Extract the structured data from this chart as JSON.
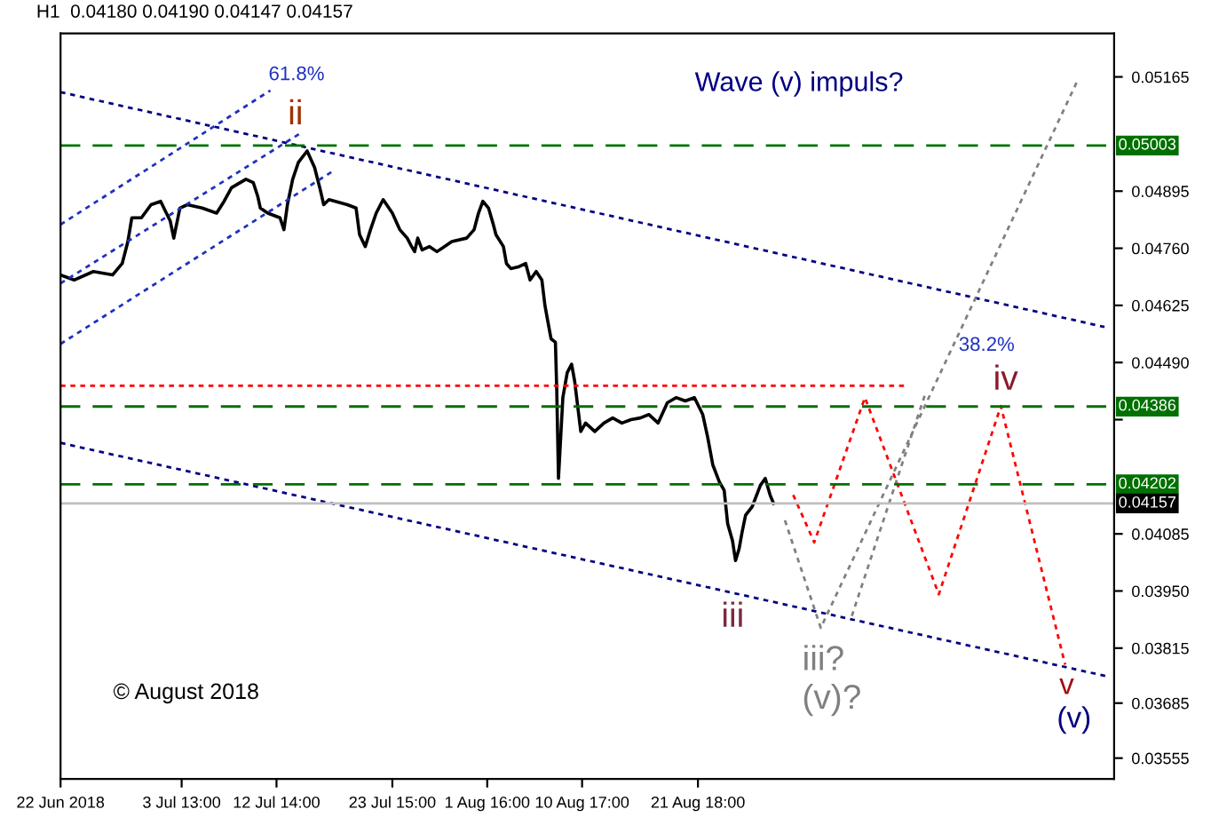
{
  "chart_data": {
    "type": "line",
    "title": "H1  0.04180 0.04190 0.04147 0.04157",
    "xlim": [
      "2018-06-22T00:00",
      "2018-09-30T10:00"
    ],
    "ylim": [
      0.03506,
      0.05268
    ],
    "xticks": [
      {
        "value": "2018-06-22T00:00",
        "label": "22 Jun 2018"
      },
      {
        "value": "2018-07-03T13:00",
        "label": "3 Jul 13:00"
      },
      {
        "value": "2018-07-12T14:00",
        "label": "12 Jul 14:00"
      },
      {
        "value": "2018-07-23T15:00",
        "label": "23 Jul 15:00"
      },
      {
        "value": "2018-08-01T16:00",
        "label": "1 Aug 16:00"
      },
      {
        "value": "2018-08-10T17:00",
        "label": "10 Aug 17:00"
      },
      {
        "value": "2018-08-21T18:00",
        "label": "21 Aug 18:00"
      }
    ],
    "yticks": [
      {
        "value": 0.03555,
        "label": "0.03555"
      },
      {
        "value": 0.03685,
        "label": "0.03685"
      },
      {
        "value": 0.03815,
        "label": "0.03815"
      },
      {
        "value": 0.0395,
        "label": "0.03950"
      },
      {
        "value": 0.04085,
        "label": "0.04085"
      },
      {
        "value": 0.04355,
        "label": null
      },
      {
        "value": 0.0449,
        "label": "0.04490"
      },
      {
        "value": 0.04625,
        "label": "0.04625"
      },
      {
        "value": 0.0476,
        "label": "0.04760"
      },
      {
        "value": 0.04895,
        "label": "0.04895"
      },
      {
        "value": 0.05165,
        "label": "0.05165"
      }
    ],
    "series": [
      {
        "color": "#000000",
        "line_style": "solid",
        "x": [
          "2018-06-22T00:00",
          "2018-06-23T07:00",
          "2018-06-25T03:00",
          "2018-06-26T23:00",
          "2018-06-27T21:00",
          "2018-06-28T10:00",
          "2018-06-28T19:00",
          "2018-06-29T17:00",
          "2018-06-30T15:00",
          "2018-07-01T13:00",
          "2018-07-02T11:00",
          "2018-07-02T19:00",
          "2018-07-03T09:00",
          "2018-07-04T02:00",
          "2018-07-05T12:00",
          "2018-07-06T21:00",
          "2018-07-07T14:00",
          "2018-07-08T07:00",
          "2018-07-09T16:00",
          "2018-07-10T09:00",
          "2018-07-10T19:00",
          "2018-07-11T01:00",
          "2018-07-11T18:00",
          "2018-07-12T22:00",
          "2018-07-13T07:00",
          "2018-07-13T15:00",
          "2018-07-14T03:00",
          "2018-07-14T16:00",
          "2018-07-15T12:00",
          "2018-07-16T05:00",
          "2018-07-16T17:00",
          "2018-07-17T02:00",
          "2018-07-17T14:00",
          "2018-07-19T08:00",
          "2018-07-20T04:00",
          "2018-07-20T12:00",
          "2018-07-21T01:00",
          "2018-07-21T13:00",
          "2018-07-22T02:00",
          "2018-07-22T18:00",
          "2018-07-23T15:00",
          "2018-07-24T08:00",
          "2018-07-25T01:00",
          "2018-07-25T11:00",
          "2018-07-25T18:00",
          "2018-07-26T01:00",
          "2018-07-26T11:00",
          "2018-07-27T04:00",
          "2018-07-27T21:00",
          "2018-07-28T14:00",
          "2018-07-29T07:00",
          "2018-07-30T17:00",
          "2018-07-31T10:00",
          "2018-07-31T20:00",
          "2018-08-01T06:00",
          "2018-08-01T19:00",
          "2018-08-02T06:00",
          "2018-08-02T12:00",
          "2018-08-03T05:00",
          "2018-08-03T12:00",
          "2018-08-03T22:00",
          "2018-08-04T15:00",
          "2018-08-05T08:00",
          "2018-08-05T18:00",
          "2018-08-06T08:00",
          "2018-08-06T21:00",
          "2018-08-07T04:00",
          "2018-08-07T11:00",
          "2018-08-07T18:00",
          "2018-08-08T04:00",
          "2018-08-08T07:00",
          "2018-08-08T11:00",
          "2018-08-08T21:00",
          "2018-08-09T07:00",
          "2018-08-09T17:00",
          "2018-08-10T00:00",
          "2018-08-10T14:00",
          "2018-08-11T01:00",
          "2018-08-11T22:00",
          "2018-08-12T19:00",
          "2018-08-13T15:00",
          "2018-08-14T12:00",
          "2018-08-15T09:00",
          "2018-08-16T06:00",
          "2018-08-17T02:00",
          "2018-08-17T23:00",
          "2018-08-18T20:00",
          "2018-08-19T16:00",
          "2018-08-20T13:00",
          "2018-08-21T10:00",
          "2018-08-22T05:00",
          "2018-08-22T16:00",
          "2018-08-23T04:00",
          "2018-08-23T19:00",
          "2018-08-24T06:00",
          "2018-08-24T14:00",
          "2018-08-25T01:00",
          "2018-08-25T08:00",
          "2018-08-25T16:00",
          "2018-08-25T23:00",
          "2018-08-26T07:00",
          "2018-08-26T22:00",
          "2018-08-27T17:00",
          "2018-08-28T04:00",
          "2018-08-28T15:00",
          "2018-08-28T23:00"
        ],
        "values": [
          0.04697,
          0.04685,
          0.04705,
          0.04697,
          0.04724,
          0.04776,
          0.04832,
          0.04832,
          0.04863,
          0.04871,
          0.04824,
          0.04784,
          0.04855,
          0.04863,
          0.04855,
          0.04843,
          0.04871,
          0.04903,
          0.04923,
          0.04915,
          0.04883,
          0.04855,
          0.04843,
          0.04832,
          0.04804,
          0.04863,
          0.04923,
          0.04963,
          0.0499,
          0.04951,
          0.04903,
          0.04863,
          0.04875,
          0.04863,
          0.04855,
          0.04792,
          0.04764,
          0.04804,
          0.04843,
          0.04875,
          0.04843,
          0.04804,
          0.04784,
          0.04764,
          0.04752,
          0.04784,
          0.04756,
          0.04764,
          0.04752,
          0.04764,
          0.04776,
          0.04784,
          0.04804,
          0.04843,
          0.04871,
          0.04855,
          0.04816,
          0.04792,
          0.04764,
          0.04724,
          0.04712,
          0.04716,
          0.04724,
          0.04685,
          0.04705,
          0.04685,
          0.04625,
          0.04585,
          0.04546,
          0.04538,
          0.04427,
          0.04216,
          0.04407,
          0.04466,
          0.04486,
          0.04446,
          0.04327,
          0.04347,
          0.04327,
          0.04347,
          0.04359,
          0.04347,
          0.04355,
          0.04359,
          0.04367,
          0.04347,
          0.04395,
          0.04407,
          0.04399,
          0.04407,
          0.04367,
          0.04315,
          0.04248,
          0.04208,
          0.04188,
          0.04109,
          0.04069,
          0.04022,
          0.04049,
          0.04089,
          0.04129,
          0.04149,
          0.042,
          0.04216,
          0.04177,
          0.04157
        ]
      },
      {
        "color": "#000080",
        "line_style": "dotted",
        "x": [
          "2018-06-22T00:00",
          "2018-09-29T12:00"
        ],
        "values": [
          0.05129,
          0.04574
        ]
      },
      {
        "color": "#000080",
        "line_style": "dotted",
        "x": [
          "2018-06-22T00:00",
          "2018-09-29T19:00"
        ],
        "values": [
          0.043,
          0.03748
        ]
      },
      {
        "color": "#2030c0",
        "line_style": "dotted",
        "x": [
          "2018-06-22T00:00",
          "2018-07-12T00:00"
        ],
        "values": [
          0.04816,
          0.05133
        ]
      },
      {
        "color": "#2030c0",
        "line_style": "dotted",
        "x": [
          "2018-06-22T00:00",
          "2018-07-15T00:00"
        ],
        "values": [
          0.04677,
          0.05034
        ]
      },
      {
        "color": "#2030c0",
        "line_style": "dotted",
        "x": [
          "2018-06-22T00:00",
          "2018-07-18T00:00"
        ],
        "values": [
          0.04534,
          0.04943
        ]
      },
      {
        "color": "#ff0000",
        "line_style": "dotted",
        "x": [
          "2018-06-22T00:00",
          "2018-09-10T10:00"
        ],
        "values": [
          0.04435,
          0.04435
        ]
      },
      {
        "color": "#ff0000",
        "line_style": "dotted",
        "x": [
          "2018-08-30T20:00",
          "2018-09-01T20:00",
          "2018-09-06T16:00",
          "2018-09-13T17:00",
          "2018-09-19T15:00",
          "2018-09-25T18:00"
        ],
        "values": [
          0.04177,
          0.04065,
          0.04407,
          0.03942,
          0.04387,
          0.03776
        ]
      },
      {
        "color": "#808080",
        "line_style": "dotted",
        "x": [
          "2018-08-30T01:00",
          "2018-09-02T11:00",
          "2018-09-27T00:00"
        ],
        "values": [
          0.04117,
          0.03863,
          0.0516
        ]
      },
      {
        "color": "#808080",
        "line_style": "dotted",
        "x": [
          "2018-09-05T10:00",
          "2018-09-12T11:00"
        ],
        "values": [
          0.03891,
          0.04419
        ]
      }
    ],
    "ref_lines": [
      {
        "axis": "y",
        "value": 0.05003,
        "label": "0.05003",
        "color": "#007000",
        "line_style": "dashed"
      },
      {
        "axis": "y",
        "value": 0.04386,
        "label": "0.04386",
        "color": "#007000",
        "line_style": "dashed"
      },
      {
        "axis": "y",
        "value": 0.04202,
        "label": "0.04202",
        "color": "#007000",
        "line_style": "dashed"
      },
      {
        "axis": "y",
        "value": 0.04157,
        "label": "0.04157",
        "color": "#c0c0c0",
        "line_style": "solid"
      }
    ],
    "annotations": [
      "Wave (v) impuls?",
      "61.8%",
      "ii",
      "38.2%",
      "iv",
      "iii",
      "iii?",
      "(v)?",
      "v",
      "(v)",
      "© August 2018"
    ]
  }
}
